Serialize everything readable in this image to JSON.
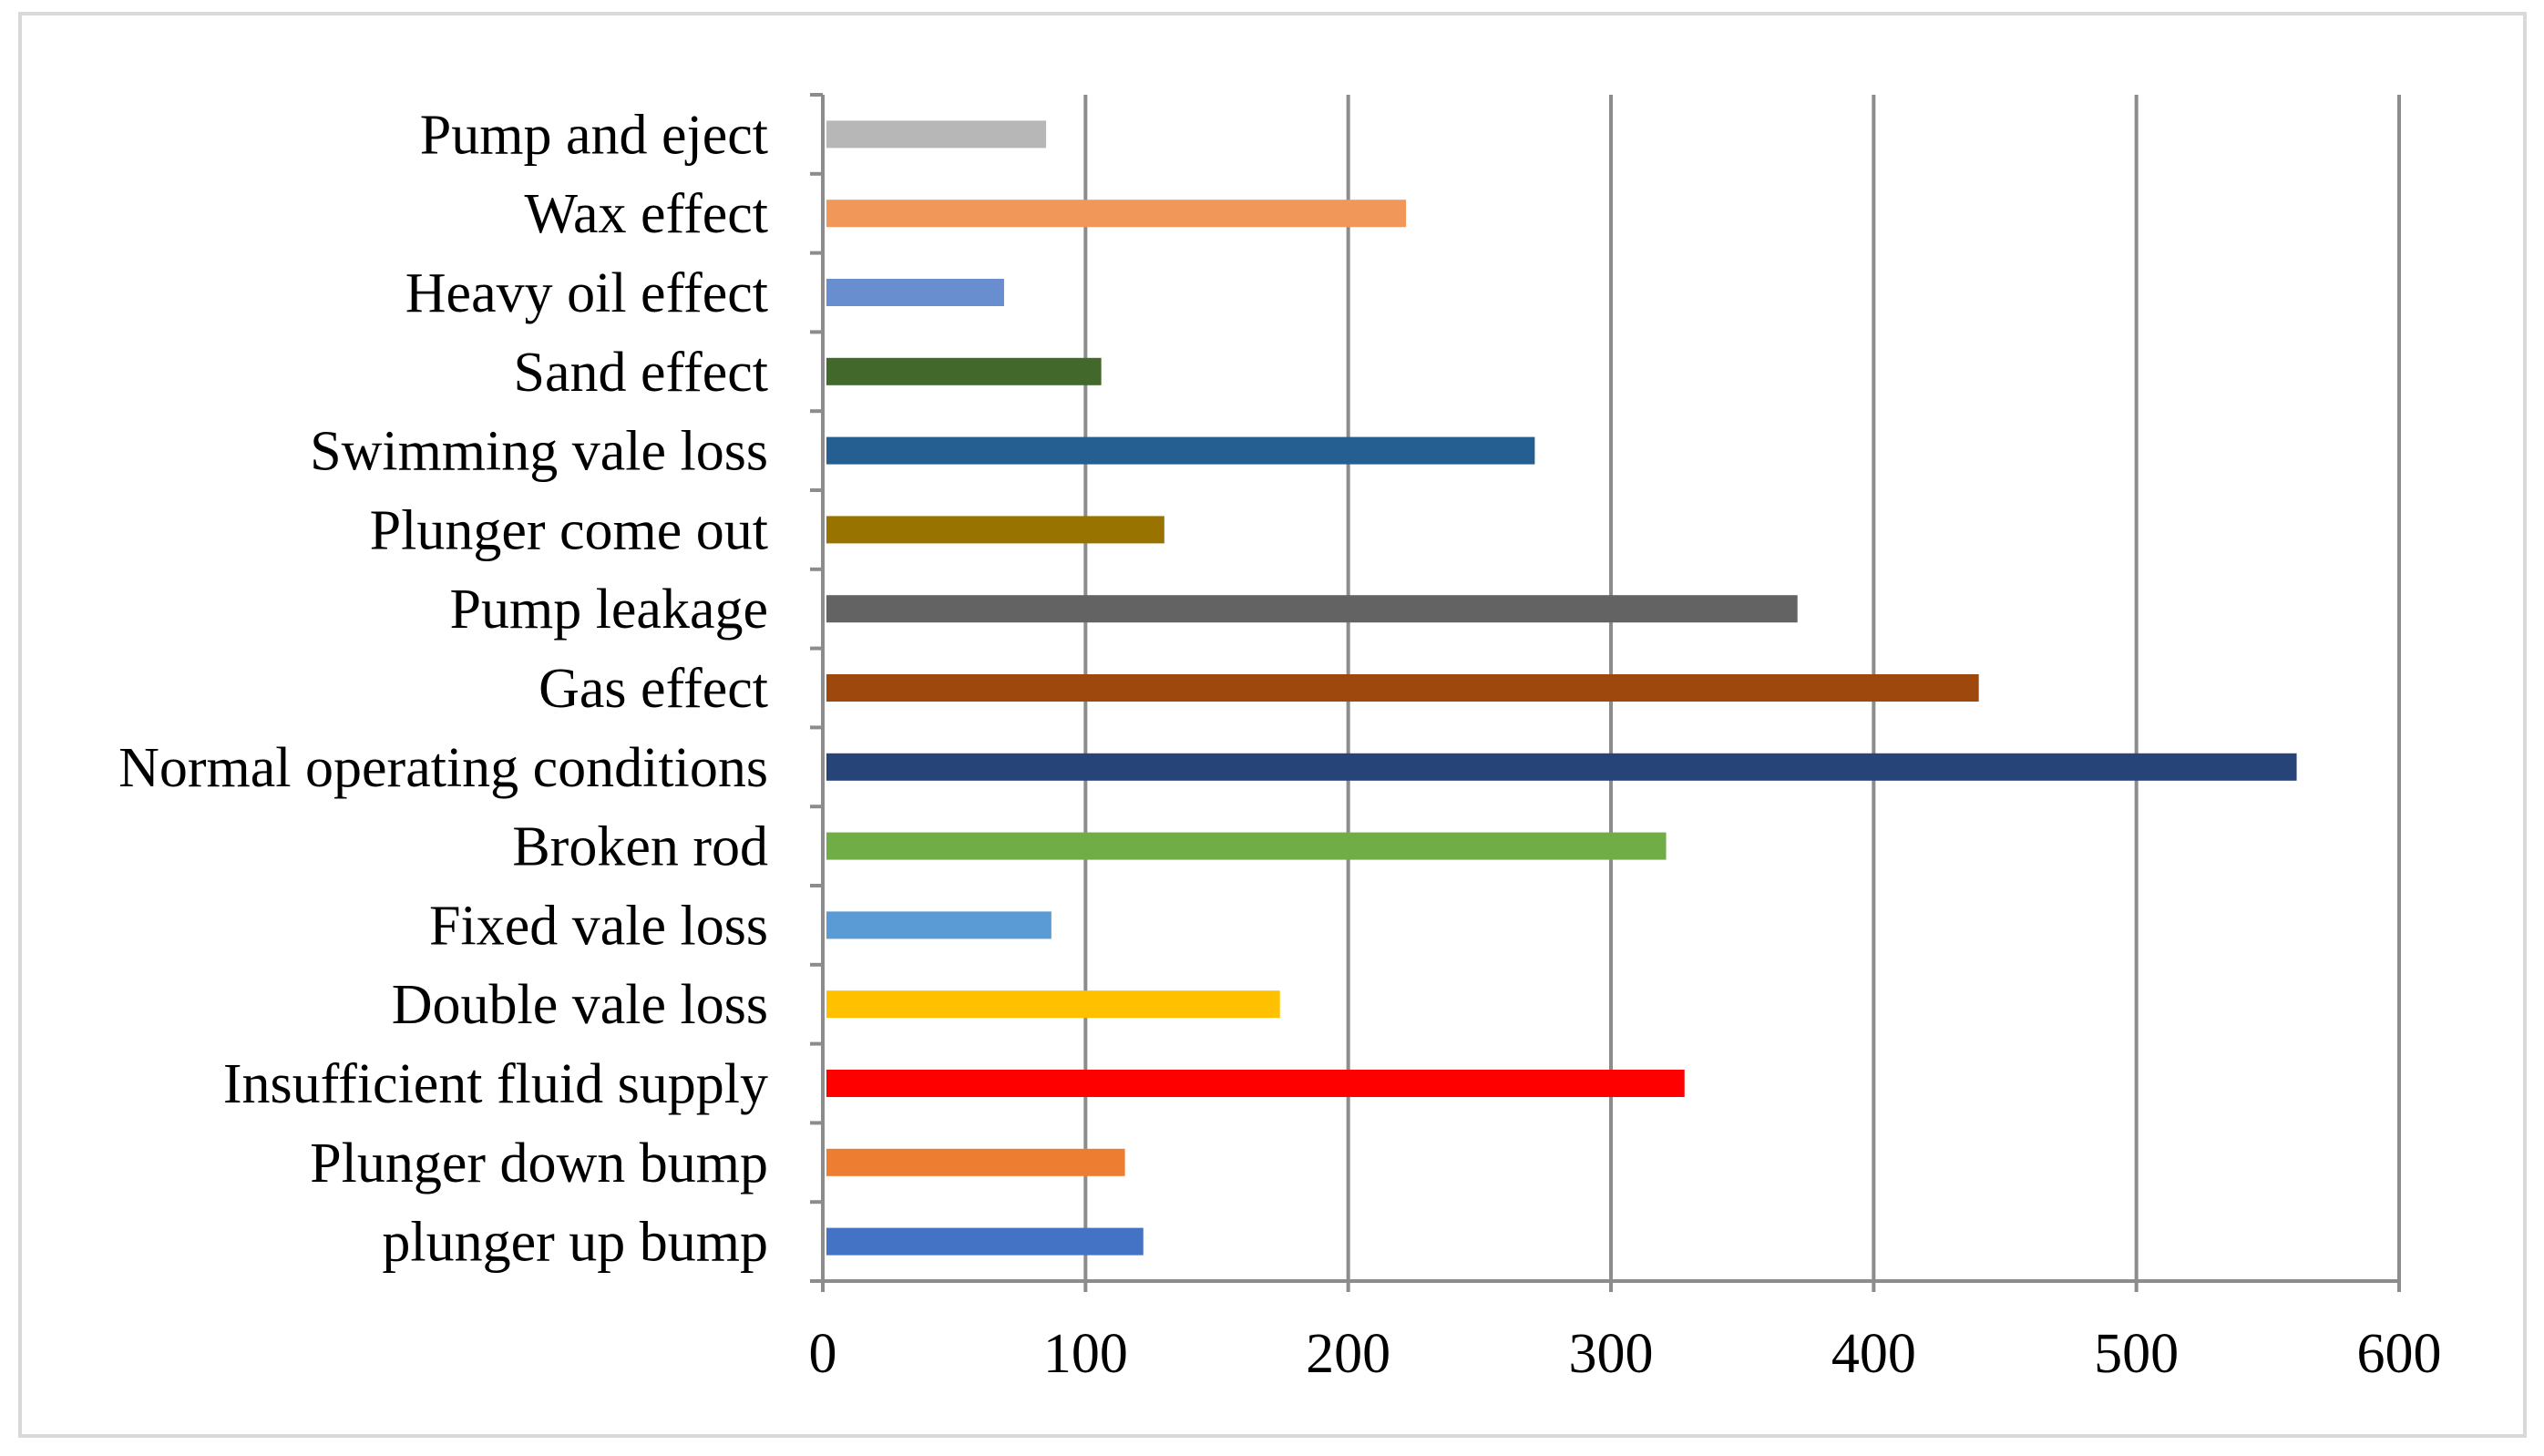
{
  "chart_data": {
    "type": "bar",
    "orientation": "horizontal",
    "title": "",
    "xlabel": "",
    "ylabel": "",
    "xlim": [
      0,
      600
    ],
    "xticks": [
      0,
      100,
      200,
      300,
      400,
      500,
      600
    ],
    "grid": "vertical major gridlines",
    "legend": "none",
    "categories": [
      "plunger up bump",
      "Plunger down bump",
      "Insufficient fluid supply",
      "Double vale loss",
      "Fixed vale loss",
      "Broken rod",
      "Normal operating conditions",
      "Gas effect",
      "Pump leakage",
      "Plunger come out",
      "Swimming vale loss",
      "Sand effect",
      "Heavy oil effect",
      "Wax effect",
      "Pump and eject"
    ],
    "values": [
      122,
      115,
      328,
      174,
      87,
      321,
      561,
      440,
      371,
      130,
      271,
      106,
      69,
      222,
      85
    ],
    "colors": [
      "#4472C4",
      "#ED7D31",
      "#FF0000",
      "#FFC000",
      "#5B9BD5",
      "#70AD47",
      "#264478",
      "#9E480E",
      "#636363",
      "#997300",
      "#255E91",
      "#43682B",
      "#698ED0",
      "#F1975A",
      "#B7B7B7"
    ]
  }
}
